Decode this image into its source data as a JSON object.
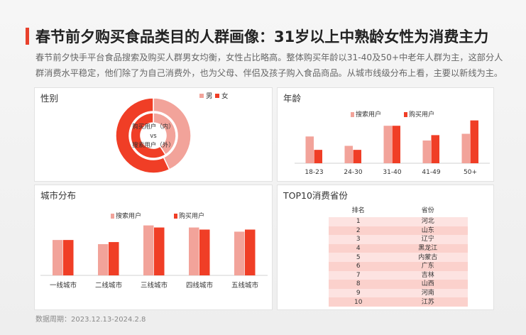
{
  "page": {
    "title": "春节前夕购买食品类目的人群画像：31岁以上中熟龄女性为消费主力",
    "description": "春节前夕快手平台食品搜索及购买人群男女均衡，女性占比略高。整体购买年龄以31-40及50+中老年人群为主，这部分人群消费水平稳定，他们除了为自己消费外，也为父母、伴侣及孩子购入食品商品。从城市线级分布上看，主要以新线为主。",
    "footer": "数据周期：2023.12.13-2024.2.8"
  },
  "colors": {
    "accent": "#e8412c",
    "search": "#f2a39a",
    "purchase": "#f03e26"
  },
  "chart_data": [
    {
      "id": "gender",
      "type": "pie",
      "title": "性别",
      "legend": [
        "男",
        "女"
      ],
      "legend_placement": "top-right",
      "center_label_lines": [
        "购买用户（内）",
        "vs",
        "搜索用户（外）"
      ],
      "series": [
        {
          "name": "购买用户",
          "ring": "inner",
          "values": [
            0.41,
            0.59
          ]
        },
        {
          "name": "搜索用户",
          "ring": "outer",
          "values": [
            0.43,
            0.57
          ]
        }
      ]
    },
    {
      "id": "age",
      "type": "bar",
      "title": "年龄",
      "categories": [
        "18-23",
        "24-30",
        "31-40",
        "41-49",
        "50+"
      ],
      "series": [
        {
          "name": "搜索用户",
          "values": [
            0.2,
            0.13,
            0.28,
            0.17,
            0.22
          ]
        },
        {
          "name": "购买用户",
          "values": [
            0.1,
            0.1,
            0.28,
            0.21,
            0.32
          ]
        }
      ],
      "ylim": [
        0,
        0.35
      ],
      "legend_placement": "top",
      "grid": false
    },
    {
      "id": "city",
      "type": "bar",
      "title": "城市分布",
      "categories": [
        "一线城市",
        "二线城市",
        "三线城市",
        "四线城市",
        "五线城市"
      ],
      "series": [
        {
          "name": "搜索用户",
          "values": [
            0.17,
            0.15,
            0.24,
            0.23,
            0.21
          ]
        },
        {
          "name": "购买用户",
          "values": [
            0.17,
            0.16,
            0.23,
            0.22,
            0.22
          ]
        }
      ],
      "ylim": [
        0,
        0.3
      ],
      "legend_placement": "top",
      "grid": false
    },
    {
      "id": "top10",
      "type": "table",
      "title": "TOP10消费省份",
      "columns": [
        "排名",
        "省份"
      ],
      "rows": [
        [
          "1",
          "河北"
        ],
        [
          "2",
          "山东"
        ],
        [
          "3",
          "辽宁"
        ],
        [
          "4",
          "黑龙江"
        ],
        [
          "5",
          "内蒙古"
        ],
        [
          "6",
          "广东"
        ],
        [
          "7",
          "吉林"
        ],
        [
          "8",
          "山西"
        ],
        [
          "9",
          "河南"
        ],
        [
          "10",
          "江苏"
        ]
      ]
    }
  ]
}
